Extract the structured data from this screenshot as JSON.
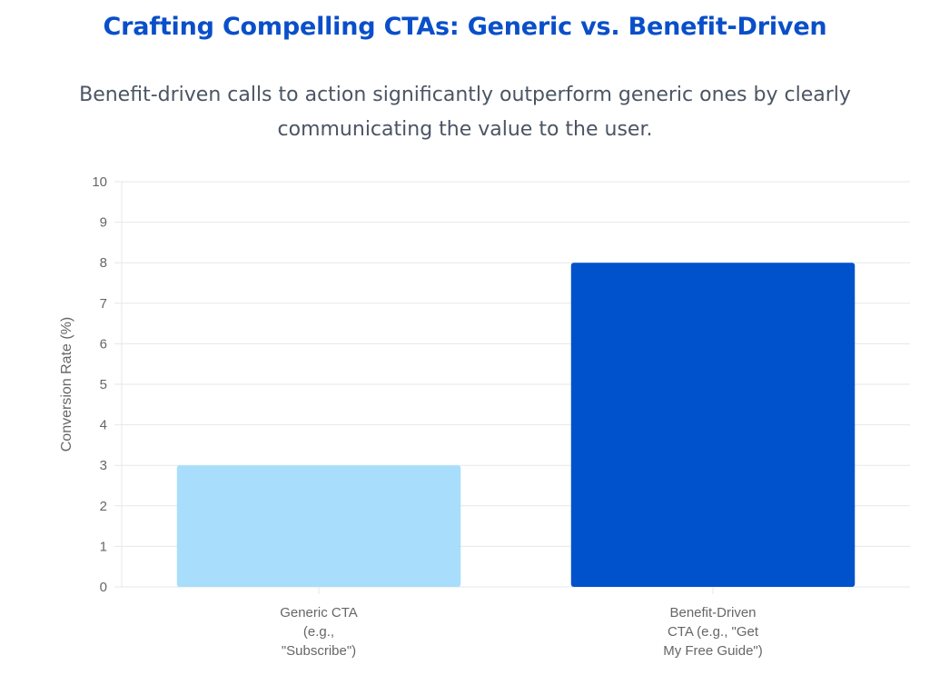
{
  "title": "Crafting Compelling CTAs: Generic vs. Benefit-Driven",
  "subtitle": "Benefit-driven calls to action significantly outperform generic ones by clearly communicating the value to the user.",
  "colors": {
    "title": "#0a4fc9",
    "subtitle": "#4b5563",
    "grid": "#e5e7eb",
    "axis_text": "#666666"
  },
  "chart_data": {
    "type": "bar",
    "categories": [
      [
        "Generic CTA",
        "(e.g.,",
        "\"Subscribe\")"
      ],
      [
        "Benefit-Driven",
        "CTA (e.g., \"Get",
        "My Free Guide\")"
      ]
    ],
    "values": [
      3,
      8
    ],
    "bar_colors": [
      "#a8defc",
      "#0052cc"
    ],
    "xlabel": "",
    "ylabel": "Conversion Rate (%)",
    "ylim": [
      0,
      10
    ],
    "yticks": [
      0,
      1,
      2,
      3,
      4,
      5,
      6,
      7,
      8,
      9,
      10
    ],
    "grid": true,
    "legend": false
  }
}
